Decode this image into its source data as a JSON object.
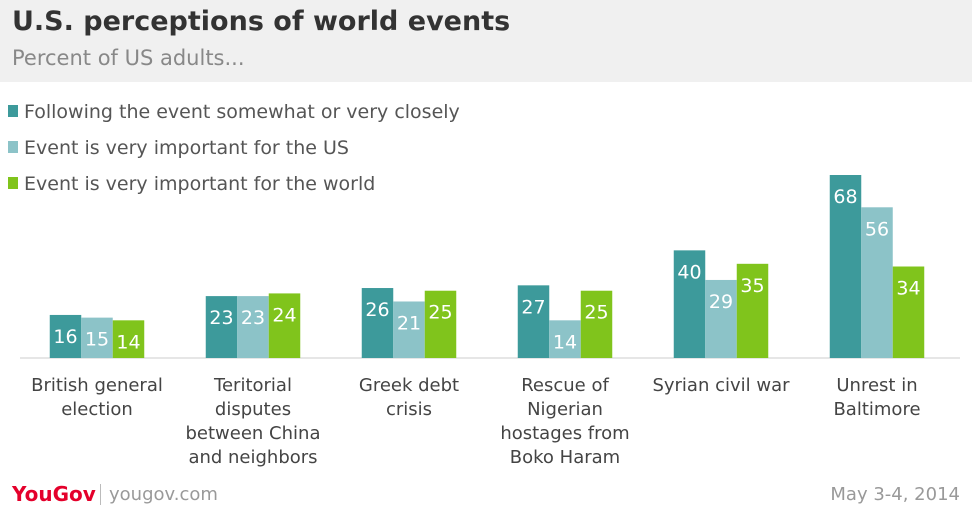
{
  "chart_data": {
    "type": "bar",
    "title": "U.S. perceptions of world events",
    "subtitle": "Percent of US adults...",
    "categories": [
      "British general election",
      "Teritorial disputes between China and neighbors",
      "Greek debt crisis",
      "Rescue of Nigerian hostages from Boko Haram",
      "Syrian civil war",
      "Unrest in Baltimore"
    ],
    "series": [
      {
        "name": "Following the event somewhat or very closely",
        "color": "#3d9a9b",
        "values": [
          16,
          23,
          26,
          27,
          40,
          68
        ]
      },
      {
        "name": "Event is very important for the US",
        "color": "#8cc3c8",
        "values": [
          15,
          23,
          21,
          14,
          29,
          56
        ]
      },
      {
        "name": "Event is very important for the world",
        "color": "#80c41c",
        "values": [
          14,
          24,
          25,
          25,
          35,
          34
        ]
      }
    ],
    "legend": "top-left"
  },
  "footer": {
    "logo": "YouGov",
    "site": "yougov.com",
    "date": "May 3-4, 2014"
  }
}
